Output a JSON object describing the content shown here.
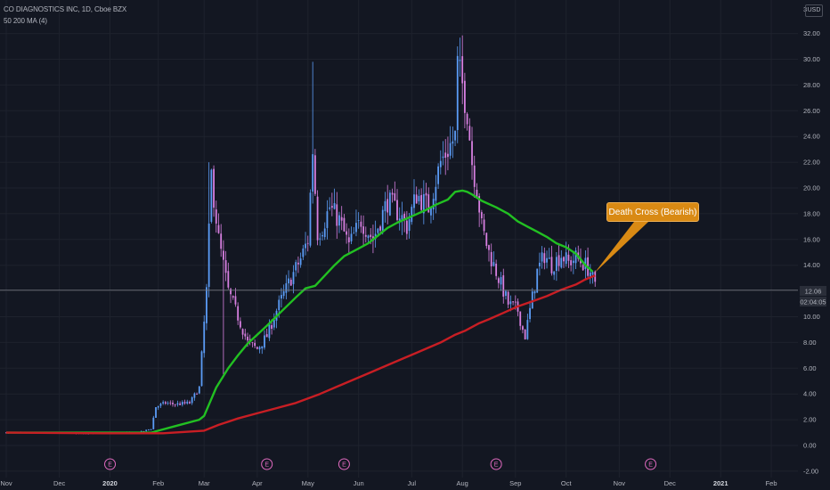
{
  "header": {
    "title": "CO DIAGNOSTICS INC, 1D, Cboe BZX",
    "indicator": "50 200 MA (4)",
    "currency": "USD",
    "top_tick": "3"
  },
  "price_tag": {
    "price": "12.06",
    "countdown": "02:04:05"
  },
  "annotation": {
    "text": "Death Cross  (Bearish)"
  },
  "colors": {
    "background": "#131722",
    "candle_up": "#5b9cf6",
    "candle_down": "#d77fe0",
    "ma50": "#22c022",
    "ma200": "#c81e24",
    "grid": "#1e222d",
    "callout": "#d98a14",
    "event": "#e06abf"
  },
  "chart_data": {
    "type": "candlestick",
    "title": "CO DIAGNOSTICS INC, 1D, Cboe BZX",
    "ylim": [
      -2,
      34
    ],
    "yticks": [
      -2,
      0,
      2,
      4,
      6,
      8,
      10,
      12,
      14,
      16,
      18,
      20,
      22,
      24,
      26,
      28,
      30,
      32
    ],
    "ytick_labels": [
      "-2.00",
      "0.00",
      "2.00",
      "4.00",
      "6.00",
      "8.00",
      "10.00",
      "",
      "14.00",
      "16.00",
      "18.00",
      "20.00",
      "22.00",
      "24.00",
      "26.00",
      "28.00",
      "30.00",
      "32.00"
    ],
    "x_labels": [
      "Nov",
      "Dec",
      "2020",
      "Feb",
      "Mar",
      "Apr",
      "May",
      "Jun",
      "Jul",
      "Aug",
      "Sep",
      "Oct",
      "Nov",
      "Dec",
      "2021",
      "Feb"
    ],
    "x_label_idx": [
      0,
      22,
      43,
      63,
      82,
      104,
      125,
      146,
      168,
      189,
      211,
      232,
      254,
      275,
      296,
      317
    ],
    "bold_labels": [
      "2020",
      "2021"
    ],
    "current_price": 12.06,
    "last_candle_idx": 244,
    "closes_anchor_idx": [
      0,
      30,
      55,
      60,
      62,
      66,
      70,
      76,
      80,
      83,
      85,
      88,
      92,
      96,
      100,
      104,
      108,
      112,
      118,
      122,
      125,
      127,
      129,
      131,
      134,
      138,
      142,
      147,
      152,
      158,
      163,
      166,
      170,
      175,
      180,
      186,
      187,
      189,
      191,
      193,
      195,
      197,
      200,
      204,
      208,
      212,
      214,
      215,
      217,
      220,
      223,
      226,
      230,
      233,
      236,
      240,
      242,
      244
    ],
    "closes_anchor_val": [
      1.0,
      0.95,
      1.0,
      1.3,
      3.0,
      3.3,
      3.2,
      3.3,
      4.5,
      12.0,
      21.0,
      16.0,
      12.0,
      10.0,
      8.0,
      7.5,
      8.5,
      10.5,
      13.0,
      14.5,
      16.0,
      23.0,
      16.5,
      17.0,
      18.5,
      17.5,
      15.5,
      17.5,
      16.0,
      19.0,
      18.0,
      17.0,
      19.5,
      18.5,
      22.0,
      24.0,
      29.5,
      28.0,
      26.0,
      22.0,
      20.0,
      17.0,
      15.0,
      13.0,
      11.0,
      10.5,
      9.0,
      8.5,
      10.5,
      13.5,
      14.8,
      14.0,
      14.8,
      14.2,
      14.6,
      14.0,
      13.5,
      12.3
    ],
    "series": [
      {
        "name": "MA 50",
        "color": "#22c022",
        "x": [
          0,
          60,
          62,
          70,
          80,
          82,
          87,
          92,
          96,
          100,
          104,
          108,
          114,
          120,
          124,
          128,
          132,
          136,
          140,
          146,
          150,
          154,
          158,
          162,
          168,
          174,
          178,
          183,
          186,
          189,
          191,
          193,
          197,
          203,
          208,
          212,
          216,
          220,
          224,
          228,
          232,
          236,
          240,
          243
        ],
        "y": [
          1.0,
          1.0,
          1.1,
          1.5,
          2.0,
          2.3,
          4.5,
          6.0,
          7.0,
          7.9,
          8.6,
          9.3,
          10.4,
          11.5,
          12.2,
          12.4,
          13.2,
          14.0,
          14.7,
          15.3,
          15.7,
          16.3,
          16.9,
          17.3,
          17.8,
          18.3,
          18.7,
          19.1,
          19.7,
          19.8,
          19.7,
          19.5,
          19.0,
          18.5,
          18.0,
          17.4,
          17.0,
          16.6,
          16.2,
          15.7,
          15.4,
          14.9,
          14.0,
          13.5
        ]
      },
      {
        "name": "MA 200",
        "color": "#c81e24",
        "x": [
          0,
          40,
          65,
          82,
          88,
          96,
          104,
          112,
          120,
          130,
          140,
          150,
          160,
          170,
          180,
          186,
          190,
          196,
          200,
          206,
          212,
          218,
          224,
          230,
          236,
          240,
          244
        ],
        "y": [
          1.0,
          0.95,
          0.95,
          1.15,
          1.6,
          2.1,
          2.5,
          2.9,
          3.3,
          4.0,
          4.8,
          5.6,
          6.4,
          7.2,
          8.0,
          8.6,
          8.9,
          9.5,
          9.8,
          10.3,
          10.8,
          11.2,
          11.6,
          12.1,
          12.5,
          12.9,
          13.2
        ]
      }
    ],
    "events": [
      {
        "idx": 43,
        "label": "E"
      },
      {
        "idx": 108,
        "label": "E"
      },
      {
        "idx": 140,
        "label": "E"
      },
      {
        "idx": 203,
        "label": "E"
      },
      {
        "idx": 267,
        "label": "E"
      }
    ],
    "annotation": {
      "text": "Death Cross  (Bearish)",
      "idx": 243,
      "price": 13.4
    }
  }
}
